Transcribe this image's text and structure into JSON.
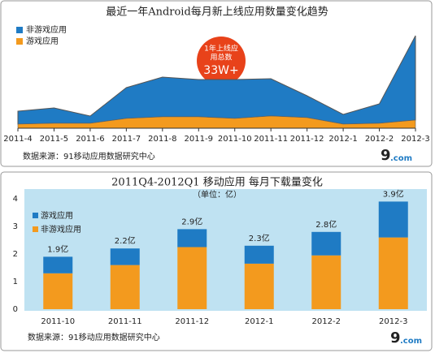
{
  "chart_data": [
    {
      "type": "area",
      "title": "最近一年Android每月新上线应用数量变化趋势",
      "categories": [
        "2011-4",
        "2011-5",
        "2011-6",
        "2011-7",
        "2011-8",
        "2011-9",
        "2011-10",
        "2011-11",
        "2011-12",
        "2012-1",
        "2012-2",
        "2012-3"
      ],
      "series": [
        {
          "name": "非游戏应用",
          "color": "#1f7bc4",
          "values": [
            16,
            19,
            9,
            38,
            49,
            46,
            48,
            46,
            27,
            12,
            24,
            104
          ]
        },
        {
          "name": "游戏应用",
          "color": "#f39a1e",
          "values": [
            5,
            6,
            6,
            12,
            14,
            14,
            12,
            15,
            13,
            5,
            6,
            10
          ]
        }
      ],
      "ylim": [
        0,
        135
      ],
      "annotation": [
        "1年上线应",
        "用总数",
        "33W+"
      ],
      "source": "数据来源：91移动应用数据研究中心",
      "logo": [
        "9",
        ".com"
      ]
    },
    {
      "type": "bar",
      "title": "2011Q4-2012Q1 移动应用 每月下载量变化",
      "subtitle": "（单位：亿）",
      "categories": [
        "2011-10",
        "2011-11",
        "2011-12",
        "2012-1",
        "2012-2",
        "2012-3"
      ],
      "series": [
        {
          "name": "游戏应用",
          "color": "#1f7bc4",
          "values": [
            0.6,
            0.6,
            0.65,
            0.65,
            0.85,
            1.3
          ]
        },
        {
          "name": "非游戏应用",
          "color": "#f39a1e",
          "values": [
            1.3,
            1.6,
            2.25,
            1.65,
            1.95,
            2.6
          ]
        }
      ],
      "totals": [
        1.9,
        2.2,
        2.9,
        2.3,
        2.8,
        3.9
      ],
      "total_labels": [
        "1.9亿",
        "2.2亿",
        "2.9亿",
        "2.3亿",
        "2.8亿",
        "3.9亿"
      ],
      "ylim": [
        0,
        4
      ],
      "yticks": [
        0,
        1,
        2,
        3,
        4
      ],
      "source": "数据来源：91移动应用数据研究中心",
      "logo": [
        "9",
        ".com"
      ]
    }
  ]
}
